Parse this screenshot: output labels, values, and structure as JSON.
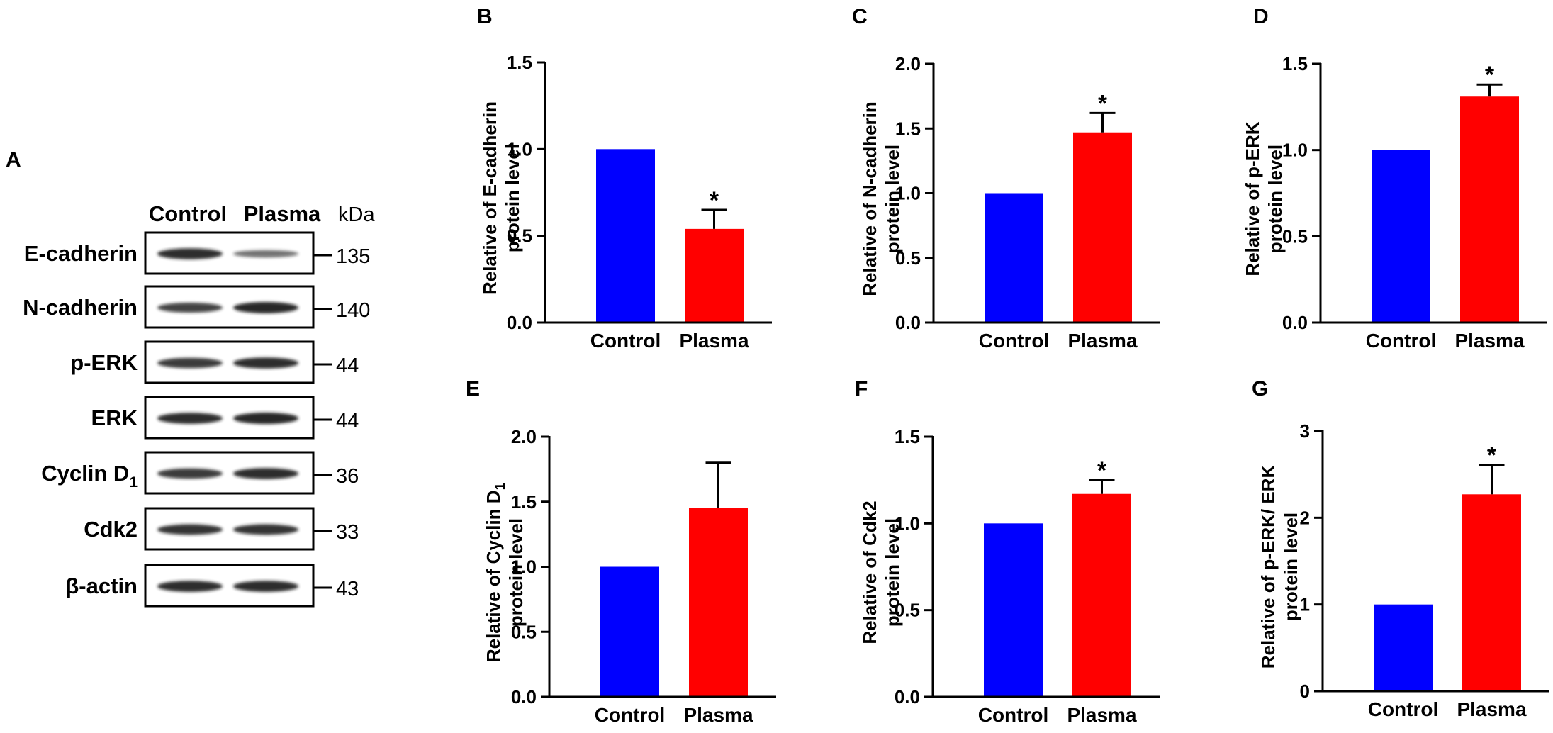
{
  "colors": {
    "control": "#0000ff",
    "plasma": "#ff0000",
    "axis": "#000000",
    "band": "#1a1a1a"
  },
  "western_blot": {
    "panel_label": "A",
    "columns": [
      "Control",
      "Plasma"
    ],
    "unit_label": "kDa",
    "rows": [
      {
        "protein": "E-cadherin",
        "subscript": "",
        "kda": "135",
        "control_intensity": 0.95,
        "plasma_intensity": 0.45
      },
      {
        "protein": "N-cadherin",
        "subscript": "",
        "kda": "140",
        "control_intensity": 0.8,
        "plasma_intensity": 1.0
      },
      {
        "protein": "p-ERK",
        "subscript": "",
        "kda": "44",
        "control_intensity": 0.85,
        "plasma_intensity": 0.95
      },
      {
        "protein": "ERK",
        "subscript": "",
        "kda": "44",
        "control_intensity": 0.95,
        "plasma_intensity": 1.0
      },
      {
        "protein": "Cyclin D",
        "subscript": "1",
        "kda": "36",
        "control_intensity": 0.85,
        "plasma_intensity": 0.95
      },
      {
        "protein": "Cdk2",
        "subscript": "",
        "kda": "33",
        "control_intensity": 0.9,
        "plasma_intensity": 0.9
      },
      {
        "protein": "β-actin",
        "subscript": "",
        "kda": "43",
        "control_intensity": 0.95,
        "plasma_intensity": 0.95
      }
    ]
  },
  "chart_data": [
    {
      "panel": "B",
      "type": "bar",
      "categories": [
        "Control",
        "Plasma"
      ],
      "values": [
        1.0,
        0.54
      ],
      "errors": [
        0,
        0.11
      ],
      "significance": [
        "",
        "*"
      ],
      "ylabel_line1": "Relative of E-cadherin",
      "ylabel_sub": "",
      "ylabel_line2": "protein level",
      "ylim": [
        0,
        1.5
      ],
      "yticks": [
        "0.0",
        "0.5",
        "1.0",
        "1.5"
      ],
      "ytick_values": [
        0,
        0.5,
        1.0,
        1.5
      ]
    },
    {
      "panel": "C",
      "type": "bar",
      "categories": [
        "Control",
        "Plasma"
      ],
      "values": [
        1.0,
        1.47
      ],
      "errors": [
        0,
        0.15
      ],
      "significance": [
        "",
        "*"
      ],
      "ylabel_line1": "Relative of N-cadherin",
      "ylabel_sub": "",
      "ylabel_line2": "protein level",
      "ylim": [
        0,
        2.0
      ],
      "yticks": [
        "0.0",
        "0.5",
        "1.0",
        "1.5",
        "2.0"
      ],
      "ytick_values": [
        0,
        0.5,
        1.0,
        1.5,
        2.0
      ]
    },
    {
      "panel": "D",
      "type": "bar",
      "categories": [
        "Control",
        "Plasma"
      ],
      "values": [
        1.0,
        1.31
      ],
      "errors": [
        0,
        0.07
      ],
      "significance": [
        "",
        "*"
      ],
      "ylabel_line1": "Relative of p-ERK",
      "ylabel_sub": "",
      "ylabel_line2": "protein level",
      "ylim": [
        0,
        1.5
      ],
      "yticks": [
        "0.0",
        "0.5",
        "1.0",
        "1.5"
      ],
      "ytick_values": [
        0,
        0.5,
        1.0,
        1.5
      ]
    },
    {
      "panel": "E",
      "type": "bar",
      "categories": [
        "Control",
        "Plasma"
      ],
      "values": [
        1.0,
        1.45
      ],
      "errors": [
        0,
        0.35
      ],
      "significance": [
        "",
        ""
      ],
      "ylabel_line1": "Relative of Cyclin D",
      "ylabel_sub": "1",
      "ylabel_line2": "protein level",
      "ylim": [
        0,
        2.0
      ],
      "yticks": [
        "0.0",
        "0.5",
        "1.0",
        "1.5",
        "2.0"
      ],
      "ytick_values": [
        0,
        0.5,
        1.0,
        1.5,
        2.0
      ]
    },
    {
      "panel": "F",
      "type": "bar",
      "categories": [
        "Control",
        "Plasma"
      ],
      "values": [
        1.0,
        1.17
      ],
      "errors": [
        0,
        0.08
      ],
      "significance": [
        "",
        "*"
      ],
      "ylabel_line1": "Relative of Cdk2",
      "ylabel_sub": "",
      "ylabel_line2": "protein level",
      "ylim": [
        0,
        1.5
      ],
      "yticks": [
        "0.0",
        "0.5",
        "1.0",
        "1.5"
      ],
      "ytick_values": [
        0,
        0.5,
        1.0,
        1.5
      ]
    },
    {
      "panel": "G",
      "type": "bar",
      "categories": [
        "Control",
        "Plasma"
      ],
      "values": [
        1.0,
        2.27
      ],
      "errors": [
        0,
        0.34
      ],
      "significance": [
        "",
        "*"
      ],
      "ylabel_line1": "Relative of p-ERK/ ERK",
      "ylabel_sub": "",
      "ylabel_line2": "protein level",
      "ylim": [
        0,
        3
      ],
      "yticks": [
        "0",
        "1",
        "2",
        "3"
      ],
      "ytick_values": [
        0,
        1,
        2,
        3
      ]
    }
  ]
}
